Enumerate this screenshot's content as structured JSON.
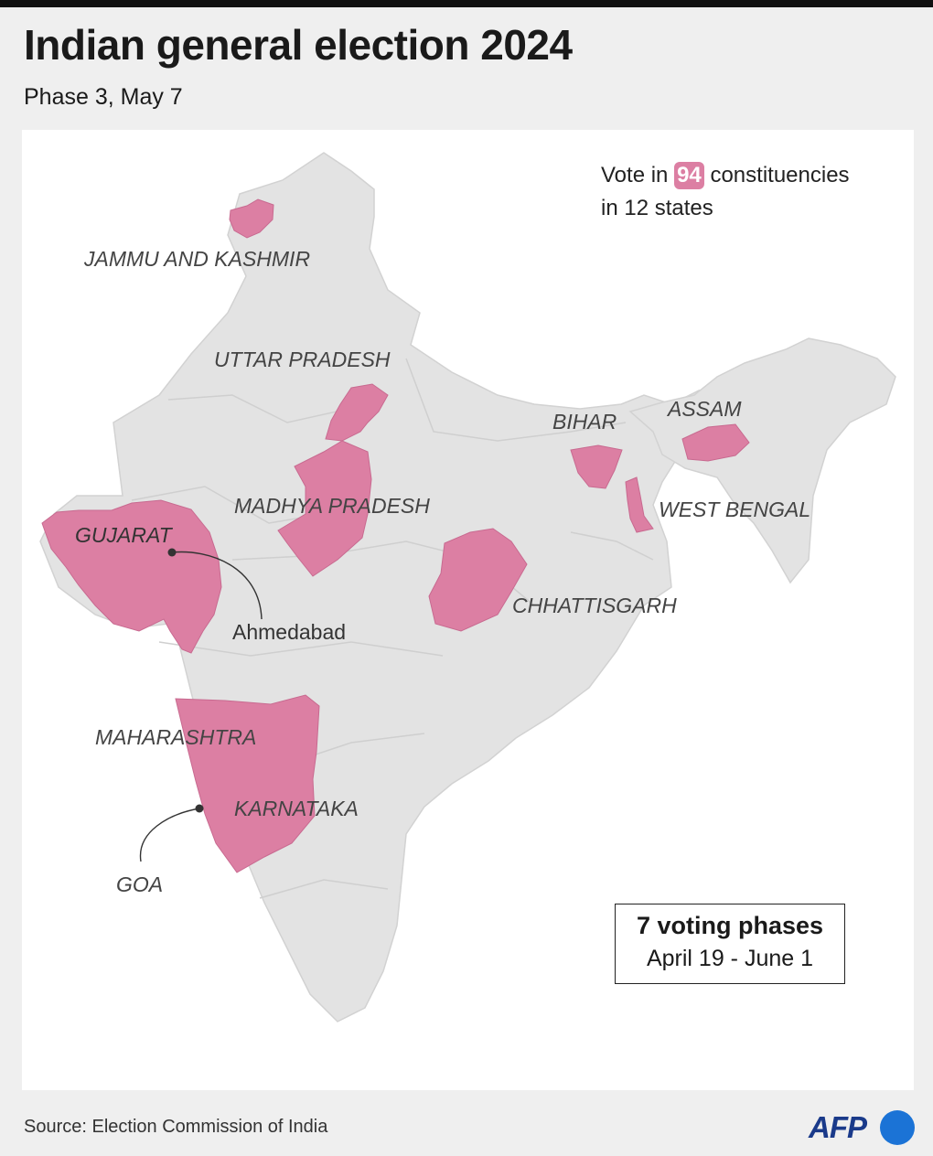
{
  "header": {
    "title": "Indian general election 2024",
    "subtitle": "Phase 3, May 7"
  },
  "summary": {
    "prefix": "Vote in",
    "count": "94",
    "suffix": "constituencies",
    "line2": "in 12 states"
  },
  "states": {
    "jammu_kashmir": "JAMMU AND KASHMIR",
    "uttar_pradesh": "UTTAR PRADESH",
    "madhya_pradesh": "MADHYA PRADESH",
    "gujarat": "GUJARAT",
    "bihar": "BIHAR",
    "assam": "ASSAM",
    "west_bengal": "WEST BENGAL",
    "chhattisgarh": "CHHATTISGARH",
    "maharashtra": "MAHARASHTRA",
    "karnataka": "KARNATAKA",
    "goa": "GOA"
  },
  "cities": {
    "ahmedabad": "Ahmedabad"
  },
  "phases_box": {
    "title": "7 voting phases",
    "dates": "April 19 - June 1"
  },
  "footer": {
    "source": "Source: Election Commission of India",
    "logo": "AFP"
  },
  "colors": {
    "highlight": "#dc7fa3",
    "land": "#e3e3e3",
    "background": "#ffffff",
    "logo_blue": "#1b73d6"
  }
}
